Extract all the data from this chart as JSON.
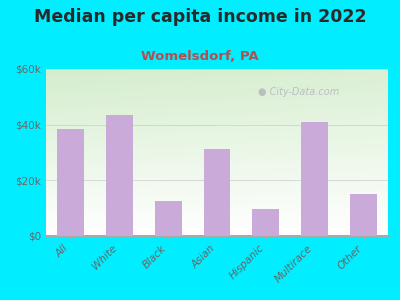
{
  "title": "Median per capita income in 2022",
  "subtitle": "Womelsdorf, PA",
  "categories": [
    "All",
    "White",
    "Black",
    "Asian",
    "Hispanic",
    "Multirace",
    "Other"
  ],
  "values": [
    38500,
    43500,
    12500,
    31000,
    9500,
    41000,
    15000
  ],
  "bar_color": "#c9aad8",
  "background_outer": "#00eeff",
  "bg_top_left": "#d4edcc",
  "bg_bottom_right": "#ffffff",
  "title_color": "#2a2a2a",
  "subtitle_color": "#b05050",
  "tick_color": "#666666",
  "ylim": [
    0,
    60000
  ],
  "yticks": [
    0,
    20000,
    40000,
    60000
  ],
  "ytick_labels": [
    "$0",
    "$20k",
    "$40k",
    "$60k"
  ],
  "title_fontsize": 12.5,
  "subtitle_fontsize": 9.5,
  "watermark": "City-Data.com",
  "watermark_icon": "●"
}
